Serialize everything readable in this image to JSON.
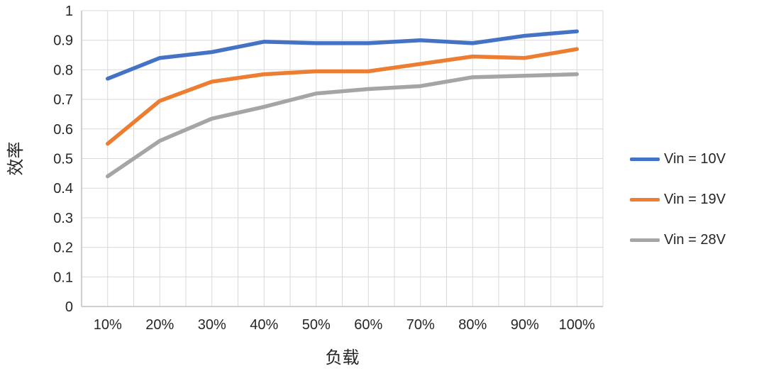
{
  "chart_data": {
    "type": "line",
    "title": "",
    "xlabel": "负载",
    "ylabel": "效率",
    "categories": [
      "10%",
      "20%",
      "30%",
      "40%",
      "50%",
      "60%",
      "70%",
      "80%",
      "90%",
      "100%"
    ],
    "series": [
      {
        "name": "Vin = 10V",
        "color": "#4472C4",
        "values": [
          0.77,
          0.84,
          0.86,
          0.895,
          0.89,
          0.89,
          0.9,
          0.89,
          0.915,
          0.93
        ]
      },
      {
        "name": "Vin = 19V",
        "color": "#ED7D31",
        "values": [
          0.55,
          0.695,
          0.76,
          0.785,
          0.795,
          0.795,
          0.82,
          0.845,
          0.84,
          0.87
        ]
      },
      {
        "name": "Vin = 28V",
        "color": "#A5A5A5",
        "values": [
          0.44,
          0.56,
          0.635,
          0.675,
          0.72,
          0.735,
          0.745,
          0.775,
          0.78,
          0.785
        ]
      }
    ],
    "ylim": [
      0,
      1
    ],
    "ytick_step": 0.1,
    "ytick_labels": [
      "0",
      "0.1",
      "0.2",
      "0.3",
      "0.4",
      "0.5",
      "0.6",
      "0.7",
      "0.8",
      "0.9",
      "1"
    ],
    "grid": "on",
    "gridline_color": "#D9D9D9",
    "axis_line_color": "#BFBFBF",
    "legend_position": "right",
    "legend": [
      "Vin = 10V",
      "Vin = 19V",
      "Vin = 28V"
    ]
  }
}
